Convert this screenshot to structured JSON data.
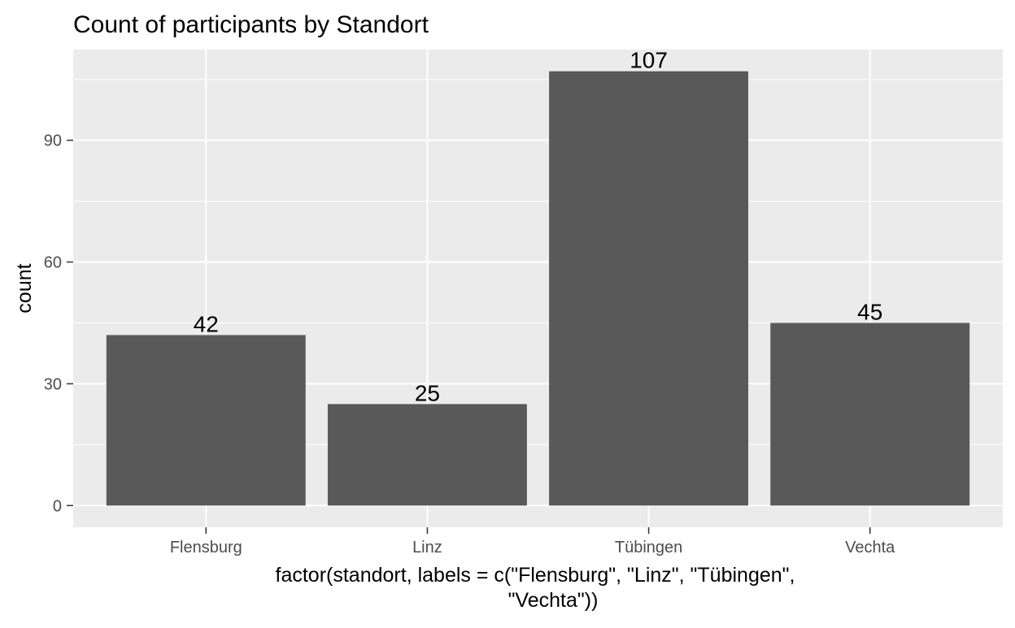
{
  "chart_data": {
    "type": "bar",
    "title": "Count of participants by Standort",
    "xlabel_lines": [
      "factor(standort, labels = c(\"Flensburg\", \"Linz\", \"Tübingen\",",
      "\"Vechta\"))"
    ],
    "ylabel": "count",
    "categories": [
      "Flensburg",
      "Linz",
      "Tübingen",
      "Vechta"
    ],
    "values": [
      42,
      25,
      107,
      45
    ],
    "data_labels": [
      "42",
      "25",
      "107",
      "45"
    ],
    "y_ticks": [
      0,
      30,
      60,
      90
    ],
    "y_tick_labels": [
      "0",
      "30",
      "60",
      "90"
    ],
    "ylim": [
      -5.35,
      112.35
    ],
    "grid": true,
    "legend": "none"
  },
  "colors": {
    "panel_background": "#ebebeb",
    "grid_major": "#ffffff",
    "bar_fill": "#595959",
    "tick_text": "#4d4d4d",
    "text": "#000000"
  }
}
